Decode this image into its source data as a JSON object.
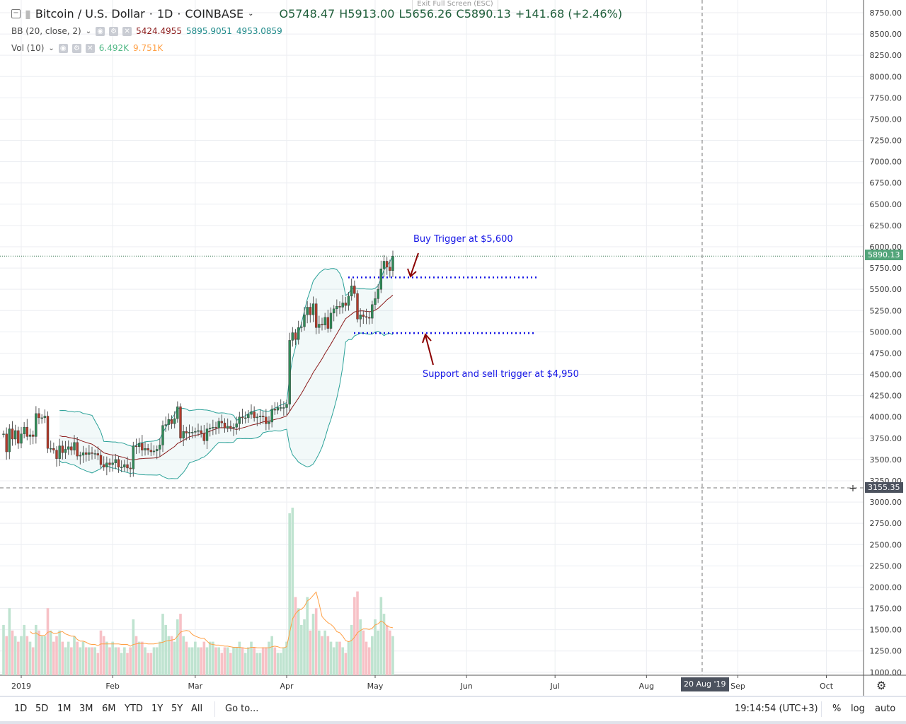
{
  "header": {
    "symbol": "Bitcoin / U.S. Dollar",
    "interval": "1D",
    "exchange": "COINBASE",
    "open": "O5748.47",
    "high": "H5913.00",
    "low": "L5656.26",
    "close": "C5890.13",
    "change": "+141.68 (+2.46%)",
    "exit_fullscreen": "Exit Full Screen (ESC)"
  },
  "indicators": {
    "bb": {
      "label": "BB (20, close, 2)",
      "basis": "5424.4955",
      "upper": "5895.9051",
      "lower": "4953.0859"
    },
    "vol": {
      "label": "Vol (10)",
      "value": "6.492K",
      "ma": "9.751K"
    }
  },
  "colors": {
    "up": "#53b987",
    "down": "#eb4d5c",
    "up_body": "#2f8a57",
    "down_body": "#b23a2a",
    "bb_band": "#2aa198",
    "bb_basis": "#8b1a1a",
    "vol_ma": "#ff9f43",
    "annotation": "#1515e6",
    "arrow": "#8b0000"
  },
  "chart_data": {
    "type": "candlestick",
    "start_date": "2018-12-26",
    "closes": [
      3800,
      3590,
      3860,
      3740,
      3840,
      3690,
      3800,
      3880,
      3770,
      3790,
      3770,
      4040,
      3990,
      3990,
      4010,
      3630,
      3630,
      3610,
      3510,
      3660,
      3580,
      3620,
      3650,
      3610,
      3700,
      3540,
      3550,
      3580,
      3560,
      3580,
      3570,
      3570,
      3550,
      3440,
      3410,
      3460,
      3440,
      3460,
      3500,
      3410,
      3410,
      3440,
      3400,
      3390,
      3660,
      3650,
      3690,
      3610,
      3630,
      3610,
      3590,
      3600,
      3620,
      3670,
      3900,
      3910,
      3970,
      3920,
      3980,
      4120,
      3750,
      3830,
      3810,
      3820,
      3820,
      3830,
      3840,
      3810,
      3720,
      3860,
      3870,
      3880,
      3870,
      3950,
      3930,
      3870,
      3890,
      3870,
      3880,
      3920,
      4000,
      3990,
      3990,
      4030,
      4060,
      3990,
      4000,
      4010,
      4000,
      3920,
      3940,
      4090,
      4080,
      4110,
      4110,
      4110,
      4150,
      4900,
      4990,
      4910,
      5050,
      5060,
      5200,
      5290,
      5200,
      5330,
      5050,
      5090,
      5080,
      5170,
      5040,
      5220,
      5270,
      5300,
      5290,
      5340,
      5310,
      5420,
      5540,
      5450,
      5150,
      5200,
      5180,
      5170,
      5160,
      5320,
      5390,
      5500,
      5740,
      5830,
      5760,
      5720,
      5890
    ],
    "volumes_k": [
      9,
      7,
      12,
      8,
      7,
      6,
      7,
      9,
      7,
      6,
      5,
      9,
      8,
      7,
      7,
      12,
      8,
      6,
      7,
      8,
      6,
      5,
      6,
      5,
      7,
      6,
      5,
      6,
      5,
      5,
      5,
      5,
      4,
      8,
      7,
      6,
      5,
      6,
      5,
      5,
      4,
      5,
      4,
      5,
      10,
      7,
      6,
      6,
      5,
      4,
      4,
      5,
      5,
      6,
      11,
      9,
      7,
      7,
      6,
      10,
      11,
      7,
      6,
      5,
      5,
      6,
      5,
      5,
      6,
      5,
      6,
      6,
      5,
      5,
      4,
      5,
      5,
      4,
      5,
      5,
      6,
      5,
      4,
      5,
      6,
      5,
      4,
      4,
      5,
      5,
      6,
      7,
      5,
      4,
      4,
      5,
      6,
      29,
      30,
      14,
      12,
      9,
      10,
      14,
      8,
      11,
      12,
      8,
      7,
      8,
      7,
      6,
      5,
      6,
      6,
      5,
      4,
      6,
      9,
      14,
      15,
      10,
      8,
      6,
      5,
      7,
      10,
      8,
      14,
      11,
      9,
      8,
      7
    ],
    "ylim": [
      3000,
      8750
    ],
    "price_ticks": [
      8750,
      8500,
      8250,
      8000,
      7750,
      7500,
      7250,
      7000,
      6750,
      6500,
      6250,
      6000,
      5750,
      5500,
      5250,
      5000,
      4750,
      4500,
      4250,
      4000,
      3750,
      3500,
      3250,
      3000,
      2750,
      2500,
      2250,
      2000,
      1750,
      1500,
      1250,
      1000
    ],
    "x_ticks": [
      {
        "label": "2019",
        "date": "2019-01-01"
      },
      {
        "label": "Feb",
        "date": "2019-02-01"
      },
      {
        "label": "Mar",
        "date": "2019-03-01"
      },
      {
        "label": "Apr",
        "date": "2019-04-01"
      },
      {
        "label": "May",
        "date": "2019-05-01"
      },
      {
        "label": "Jun",
        "date": "2019-06-01"
      },
      {
        "label": "Jul",
        "date": "2019-07-01"
      },
      {
        "label": "Aug",
        "date": "2019-08-01"
      },
      {
        "label": "Sep",
        "date": "2019-09-01"
      },
      {
        "label": "Oct",
        "date": "2019-10-01"
      }
    ],
    "last_price": "5890.13",
    "crosshair": {
      "price": "3155.35",
      "date": "20 Aug '19"
    },
    "annotations": [
      {
        "text": "Buy Trigger at $5,600",
        "level": 5640
      },
      {
        "text": "Support and sell trigger at $4,950",
        "level": 4985
      }
    ]
  },
  "toolbar": {
    "ranges": [
      "1D",
      "5D",
      "1M",
      "3M",
      "6M",
      "YTD",
      "1Y",
      "5Y",
      "All"
    ],
    "goto": "Go to...",
    "time": "19:14:54 (UTC+3)",
    "percent": "%",
    "log": "log",
    "auto": "auto"
  }
}
